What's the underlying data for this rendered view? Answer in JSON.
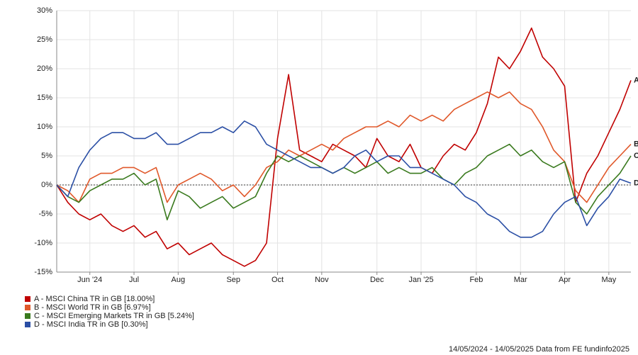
{
  "chart_data": {
    "type": "line",
    "categories": [
      null,
      null,
      null,
      "Jun '24",
      null,
      null,
      null,
      "Jul",
      null,
      null,
      null,
      "Aug",
      null,
      null,
      null,
      null,
      "Sep",
      null,
      null,
      null,
      "Oct",
      null,
      null,
      null,
      "Nov",
      null,
      null,
      null,
      null,
      "Dec",
      null,
      null,
      null,
      "Jan '25",
      null,
      null,
      null,
      null,
      "Feb",
      null,
      null,
      null,
      "Mar",
      null,
      null,
      null,
      "Apr",
      null,
      null,
      null,
      "May",
      null,
      null
    ],
    "series": [
      {
        "name": "A - MSCI China TR in GB [18.00%]",
        "tag": "A",
        "color": "#c00000",
        "values": [
          0,
          -3,
          -5,
          -6,
          -5,
          -7,
          -8,
          -7,
          -9,
          -8,
          -11,
          -10,
          -12,
          -11,
          -10,
          -12,
          -13,
          -14,
          -13,
          -10,
          8,
          19,
          6,
          5,
          4,
          7,
          6,
          5,
          3,
          8,
          5,
          4,
          7,
          3,
          2,
          5,
          7,
          6,
          9,
          14,
          22,
          20,
          23,
          27,
          22,
          20,
          17,
          -3,
          2,
          5,
          9,
          13,
          18
        ]
      },
      {
        "name": "B - MSCI World TR in GB [6.97%]",
        "tag": "B",
        "color": "#e0582a",
        "values": [
          0,
          -1,
          -3,
          1,
          2,
          2,
          3,
          3,
          2,
          3,
          -3,
          0,
          1,
          2,
          1,
          -1,
          0,
          -2,
          0,
          3,
          4,
          6,
          5,
          6,
          7,
          6,
          8,
          9,
          10,
          10,
          11,
          10,
          12,
          11,
          12,
          11,
          13,
          14,
          15,
          16,
          15,
          16,
          14,
          13,
          10,
          6,
          4,
          -1,
          -3,
          0,
          3,
          5,
          7
        ]
      },
      {
        "name": "C - MSCI Emerging Markets TR in GB [5.24%]",
        "tag": "C",
        "color": "#3a7a1e",
        "values": [
          0,
          -2,
          -3,
          -1,
          0,
          1,
          1,
          2,
          0,
          1,
          -6,
          -1,
          -2,
          -4,
          -3,
          -2,
          -4,
          -3,
          -2,
          2,
          5,
          4,
          5,
          4,
          3,
          2,
          3,
          2,
          3,
          4,
          2,
          3,
          2,
          2,
          3,
          1,
          0,
          2,
          3,
          5,
          6,
          7,
          5,
          6,
          4,
          3,
          4,
          -3,
          -5,
          -2,
          0,
          2,
          5
        ]
      },
      {
        "name": "D - MSCI India TR in GB [0.30%]",
        "tag": "D",
        "color": "#2b4fa5",
        "values": [
          0,
          -2,
          3,
          6,
          8,
          9,
          9,
          8,
          8,
          9,
          7,
          7,
          8,
          9,
          9,
          10,
          9,
          11,
          10,
          7,
          6,
          5,
          4,
          3,
          3,
          2,
          3,
          5,
          6,
          4,
          5,
          5,
          3,
          3,
          2,
          1,
          0,
          -2,
          -3,
          -5,
          -6,
          -8,
          -9,
          -9,
          -8,
          -5,
          -3,
          -2,
          -7,
          -4,
          -2,
          1,
          0.3
        ]
      }
    ],
    "ylim": [
      -15,
      30
    ],
    "yticks": [
      {
        "value": -15,
        "label": "-15%"
      },
      {
        "value": -10,
        "label": "-10%"
      },
      {
        "value": -5,
        "label": "-5%"
      },
      {
        "value": 0,
        "label": "0%"
      },
      {
        "value": 5,
        "label": "5%"
      },
      {
        "value": 10,
        "label": "10%"
      },
      {
        "value": 15,
        "label": "15%"
      },
      {
        "value": 20,
        "label": "20%"
      },
      {
        "value": 25,
        "label": "25%"
      },
      {
        "value": 30,
        "label": "30%"
      }
    ],
    "grid": true,
    "footer": "14/05/2024 - 14/05/2025 Data from FE fundinfo2025"
  }
}
